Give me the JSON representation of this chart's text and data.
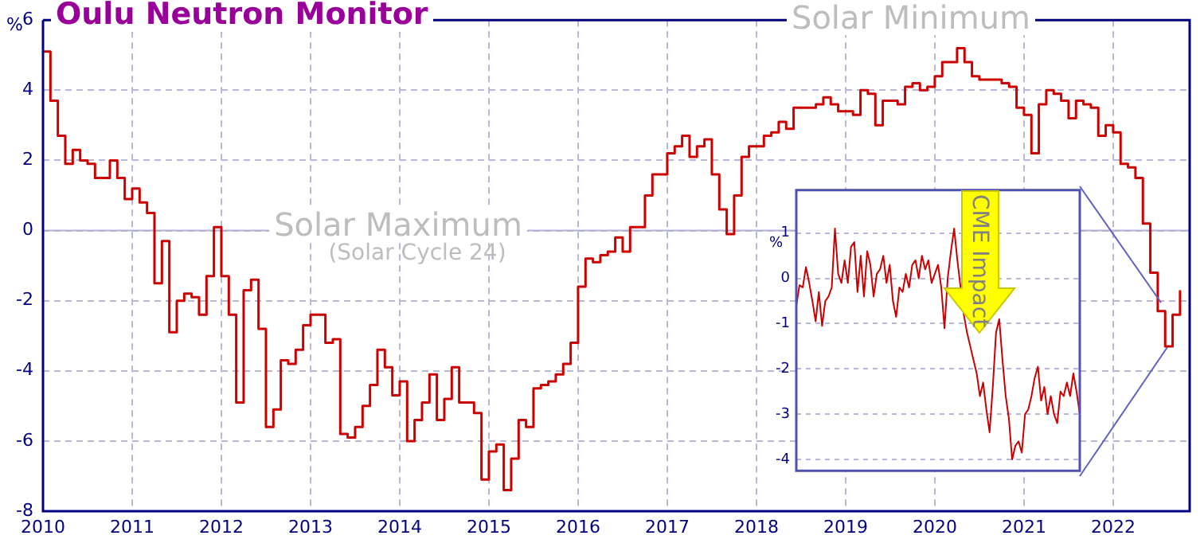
{
  "chart_data": [
    {
      "type": "step",
      "title": "Oulu Neutron Monitor",
      "ylabel": "%",
      "annotations": [
        "Solar Maximum",
        "(Solar Cycle 24)",
        "Solar Minimum"
      ],
      "x": [
        "2010-01",
        "2010-02",
        "2010-03",
        "2010-04",
        "2010-05",
        "2010-06",
        "2010-07",
        "2010-08",
        "2010-09",
        "2010-10",
        "2010-11",
        "2010-12",
        "2011-01",
        "2011-02",
        "2011-03",
        "2011-04",
        "2011-05",
        "2011-06",
        "2011-07",
        "2011-08",
        "2011-09",
        "2011-10",
        "2011-11",
        "2011-12",
        "2012-01",
        "2012-02",
        "2012-03",
        "2012-04",
        "2012-05",
        "2012-06",
        "2012-07",
        "2012-08",
        "2012-09",
        "2012-10",
        "2012-11",
        "2012-12",
        "2013-01",
        "2013-02",
        "2013-03",
        "2013-04",
        "2013-05",
        "2013-06",
        "2013-07",
        "2013-08",
        "2013-09",
        "2013-10",
        "2013-11",
        "2013-12",
        "2014-01",
        "2014-02",
        "2014-03",
        "2014-04",
        "2014-05",
        "2014-06",
        "2014-07",
        "2014-08",
        "2014-09",
        "2014-10",
        "2014-11",
        "2014-12",
        "2015-01",
        "2015-02",
        "2015-03",
        "2015-04",
        "2015-05",
        "2015-06",
        "2015-07",
        "2015-08",
        "2015-09",
        "2015-10",
        "2015-11",
        "2015-12",
        "2016-01",
        "2016-02",
        "2016-03",
        "2016-04",
        "2016-05",
        "2016-06",
        "2016-07",
        "2016-08",
        "2016-09",
        "2016-10",
        "2016-11",
        "2016-12",
        "2017-01",
        "2017-02",
        "2017-03",
        "2017-04",
        "2017-05",
        "2017-06",
        "2017-07",
        "2017-08",
        "2017-09",
        "2017-10",
        "2017-11",
        "2017-12",
        "2018-01",
        "2018-02",
        "2018-03",
        "2018-04",
        "2018-05",
        "2018-06",
        "2018-07",
        "2018-08",
        "2018-09",
        "2018-10",
        "2018-11",
        "2018-12",
        "2019-01",
        "2019-02",
        "2019-03",
        "2019-04",
        "2019-05",
        "2019-06",
        "2019-07",
        "2019-08",
        "2019-09",
        "2019-10",
        "2019-11",
        "2019-12",
        "2020-01",
        "2020-02",
        "2020-03",
        "2020-04",
        "2020-05",
        "2020-06",
        "2020-07",
        "2020-08",
        "2020-09",
        "2020-10",
        "2020-11",
        "2020-12",
        "2021-01",
        "2021-02",
        "2021-03",
        "2021-04",
        "2021-05",
        "2021-06",
        "2021-07",
        "2021-08",
        "2021-09",
        "2021-10",
        "2021-11",
        "2021-12",
        "2022-01",
        "2022-02",
        "2022-03",
        "2022-04",
        "2022-05",
        "2022-06",
        "2022-07",
        "2022-08",
        "2022-09",
        "2022-10"
      ],
      "values": [
        5.1,
        3.7,
        2.7,
        1.9,
        2.3,
        2.0,
        1.9,
        1.5,
        1.5,
        2.0,
        1.5,
        0.9,
        1.2,
        0.8,
        0.5,
        -1.5,
        -0.3,
        -2.9,
        -2.0,
        -1.8,
        -1.9,
        -2.4,
        -1.3,
        0.1,
        -1.3,
        -2.4,
        -4.9,
        -1.7,
        -1.4,
        -2.8,
        -5.6,
        -5.1,
        -3.7,
        -3.8,
        -3.4,
        -2.7,
        -2.4,
        -2.4,
        -3.2,
        -3.1,
        -5.8,
        -5.9,
        -5.6,
        -5.0,
        -4.4,
        -3.4,
        -3.9,
        -4.7,
        -4.3,
        -6.0,
        -5.4,
        -4.9,
        -4.1,
        -5.4,
        -4.8,
        -3.9,
        -4.9,
        -4.9,
        -5.2,
        -7.1,
        -6.3,
        -6.1,
        -7.4,
        -6.5,
        -5.4,
        -5.6,
        -4.5,
        -4.4,
        -4.3,
        -4.1,
        -3.8,
        -3.2,
        -1.6,
        -0.8,
        -0.9,
        -0.7,
        -0.6,
        -0.2,
        -0.6,
        0.1,
        0.1,
        1.0,
        1.6,
        1.6,
        2.2,
        2.4,
        2.7,
        2.1,
        2.4,
        2.6,
        1.6,
        0.6,
        -0.1,
        1.0,
        2.1,
        2.4,
        2.4,
        2.7,
        2.8,
        3.1,
        2.9,
        3.5,
        3.5,
        3.5,
        3.6,
        3.8,
        3.6,
        3.4,
        3.4,
        3.3,
        4.0,
        3.9,
        3.0,
        3.7,
        3.7,
        3.6,
        4.1,
        4.2,
        4.0,
        4.1,
        4.4,
        4.8,
        4.8,
        5.2,
        4.8,
        4.4,
        4.3,
        4.3,
        4.3,
        4.2,
        4.1,
        3.5,
        3.3,
        2.2,
        3.6,
        4.0,
        3.9,
        3.7,
        3.2,
        3.7,
        3.6,
        3.5,
        2.7,
        3.0,
        2.8,
        1.9,
        1.8,
        1.5,
        0.2,
        -1.2,
        -2.3,
        -3.3,
        -2.4,
        -1.7
      ],
      "color": "#cc0000",
      "xlim": [
        "2010-01",
        "2022-11-10"
      ],
      "xticks": [
        "2010",
        "2011",
        "2012",
        "2013",
        "2014",
        "2015",
        "2016",
        "2017",
        "2018",
        "2019",
        "2020",
        "2021",
        "2022"
      ],
      "ylim": [
        -8,
        6
      ],
      "yticks": [
        -8,
        -6,
        -4,
        -2,
        0,
        2,
        4,
        6
      ],
      "grid": true,
      "ref_lines": [
        {
          "axis": "y",
          "value": 0,
          "color": "#b0b0d0"
        }
      ]
    },
    {
      "type": "line",
      "ylabel": "%",
      "annotations": [
        "CME Impact"
      ],
      "tick_labels": "y",
      "grid": "y",
      "color": "#cc0000",
      "categories": [
        null,
        null,
        null,
        null,
        null,
        null,
        null,
        null,
        null,
        null,
        null,
        null,
        null,
        null,
        null,
        null,
        null,
        null,
        null,
        null,
        null,
        null,
        null,
        null,
        null,
        null,
        null,
        null,
        null,
        null,
        null,
        null,
        null,
        null,
        null,
        null,
        null,
        null,
        null,
        null,
        null,
        null,
        null,
        null,
        null,
        null,
        null,
        null,
        null,
        null,
        null,
        null,
        null,
        null,
        null,
        null,
        null,
        null,
        null,
        null,
        null,
        null,
        null,
        null,
        null,
        null,
        null,
        null,
        null,
        null,
        null,
        null,
        null,
        null,
        null,
        null,
        null,
        null,
        null,
        null,
        null,
        null,
        null,
        null,
        null,
        null,
        null,
        null,
        null
      ],
      "values": [
        -0.6,
        -0.15,
        -0.2,
        0.25,
        -0.1,
        -0.5,
        -0.95,
        -0.3,
        -1.05,
        -0.5,
        -0.4,
        -0.2,
        1.1,
        0.1,
        -0.1,
        0.4,
        -0.1,
        0.7,
        0.8,
        -0.3,
        0.5,
        -0.4,
        0.6,
        0.3,
        -0.4,
        0.1,
        0.2,
        0.5,
        -0.1,
        0.3,
        -0.5,
        -0.85,
        -0.2,
        -0.3,
        0.1,
        -0.2,
        0.3,
        0.4,
        0.0,
        0.5,
        0.2,
        0.4,
        -0.1,
        0.1,
        0.3,
        -0.2,
        -1.1,
        0.0,
        0.6,
        1.1,
        0.4,
        -0.2,
        -0.8,
        -1.2,
        -1.5,
        -1.8,
        -2.1,
        -2.6,
        -2.3,
        -2.9,
        -3.4,
        -2.4,
        -1.2,
        -0.9,
        -1.8,
        -2.6,
        -3.1,
        -4.0,
        -3.7,
        -3.6,
        -3.85,
        -3.0,
        -2.9,
        -2.6,
        -2.2,
        -1.95,
        -2.7,
        -2.4,
        -3.0,
        -2.6,
        -3.0,
        -3.2,
        -2.5,
        -2.6,
        -2.3,
        -2.6,
        -2.1,
        -2.5,
        -3.0
      ],
      "ylim": [
        -4.25,
        1.95
      ],
      "yticks": [
        1,
        0,
        -1,
        -2,
        -3,
        -4
      ]
    }
  ]
}
